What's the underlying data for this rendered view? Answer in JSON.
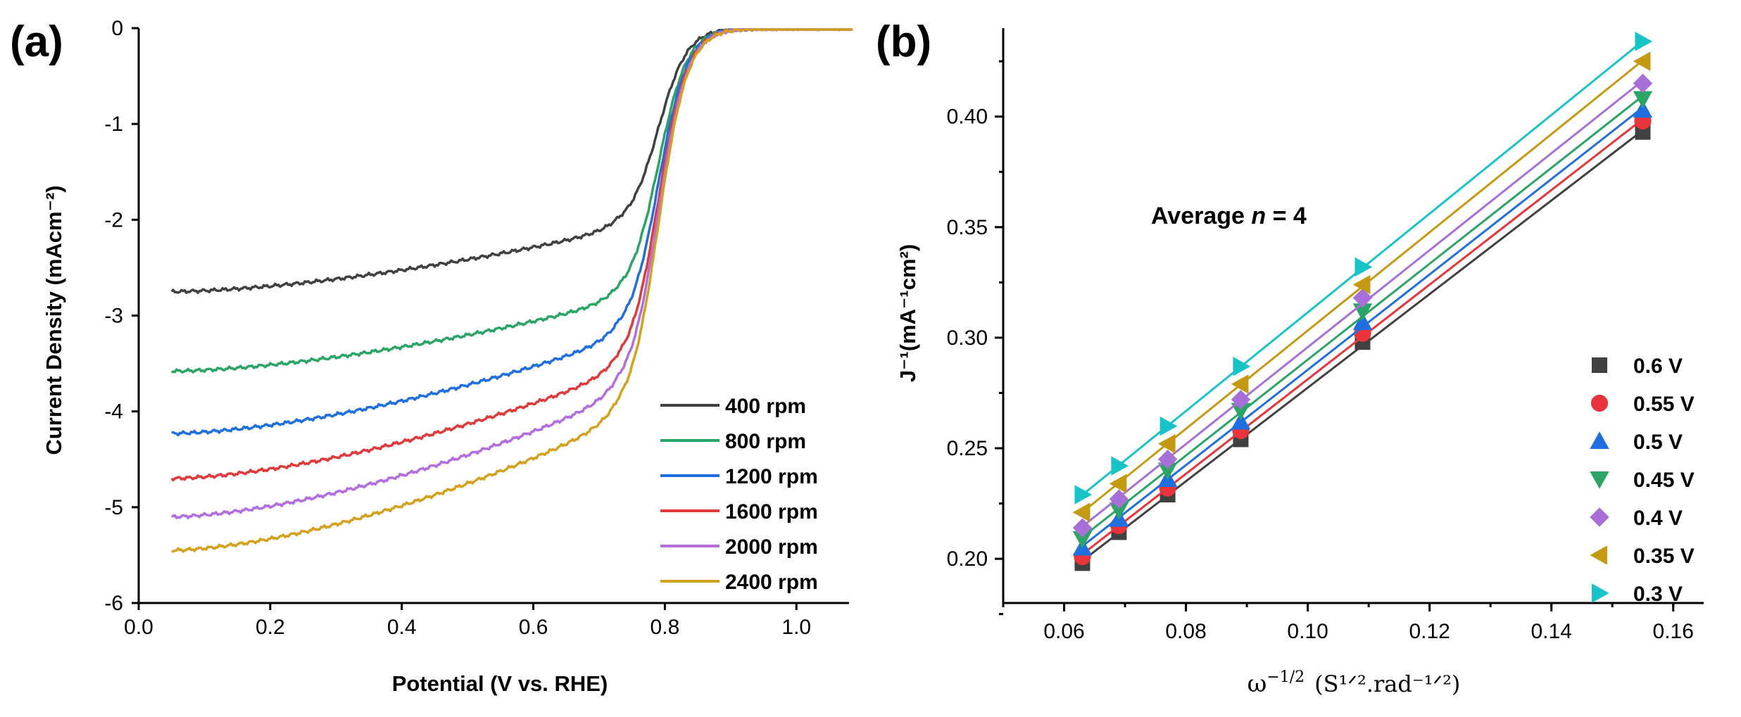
{
  "panel_labels": [
    "(a)",
    "(b)"
  ],
  "chart_data": [
    {
      "type": "line",
      "panel": "(a)",
      "xlabel": "Potential (V vs. RHE)",
      "ylabel": "Current Density (mAcm⁻²)",
      "xlim": [
        0.0,
        1.08
      ],
      "ylim": [
        -6,
        0
      ],
      "xticks": [
        "0.0",
        "0.2",
        "0.4",
        "0.6",
        "0.8",
        "1.0"
      ],
      "yticks": [
        "0",
        "-1",
        "-2",
        "-3",
        "-4",
        "-5",
        "-6"
      ],
      "legend_position": "bottom-right",
      "series": [
        {
          "name": "400 rpm",
          "color": "#404040",
          "limiting": -2.75,
          "plateau": -2.1
        },
        {
          "name": "800 rpm",
          "color": "#2aa566",
          "limiting": -3.58,
          "plateau": -2.85
        },
        {
          "name": "1200 rpm",
          "color": "#1f6fe0",
          "limiting": -4.23,
          "plateau": -3.25
        },
        {
          "name": "1600 rpm",
          "color": "#e0393a",
          "limiting": -4.7,
          "plateau": -3.6
        },
        {
          "name": "2000 rpm",
          "color": "#b26ee0",
          "limiting": -5.1,
          "plateau": -3.85
        },
        {
          "name": "2400 rpm",
          "color": "#d4a11c",
          "limiting": -5.45,
          "plateau": -4.1
        }
      ]
    },
    {
      "type": "scatter",
      "panel": "(b)",
      "xlabel_math": "ω",
      "xlabel_exp": "−1/2",
      "xlabel_units": "(S¹ᐟ².rad⁻¹ᐟ²)",
      "ylabel": "J⁻¹(mA⁻¹cm²)",
      "annotation_prefix": "Average ",
      "annotation_var": "n",
      "annotation_suffix": " = 4",
      "xlim": [
        0.05,
        0.165
      ],
      "ylim": [
        0.18,
        0.44
      ],
      "xticks": [
        "0.06",
        "0.08",
        "0.10",
        "0.12",
        "0.14",
        "0.16"
      ],
      "yticks": [
        "0.20",
        "0.25",
        "0.30",
        "0.35",
        "0.40"
      ],
      "x": [
        0.063,
        0.069,
        0.077,
        0.089,
        0.109,
        0.155
      ],
      "legend_position": "bottom-right",
      "series": [
        {
          "name": "0.6 V",
          "marker": "square",
          "color": "#404040",
          "values": [
            0.198,
            0.212,
            0.229,
            0.254,
            0.298,
            0.393
          ]
        },
        {
          "name": "0.55 V",
          "marker": "circle",
          "color": "#e8343a",
          "values": [
            0.201,
            0.215,
            0.232,
            0.258,
            0.302,
            0.398
          ]
        },
        {
          "name": "0.5 V",
          "marker": "triangle-up",
          "color": "#1f6fe0",
          "values": [
            0.205,
            0.218,
            0.236,
            0.262,
            0.307,
            0.403
          ]
        },
        {
          "name": "0.45 V",
          "marker": "triangle-down",
          "color": "#2aa566",
          "values": [
            0.209,
            0.222,
            0.24,
            0.267,
            0.312,
            0.408
          ]
        },
        {
          "name": "0.4 V",
          "marker": "diamond",
          "color": "#a86fd9",
          "values": [
            0.214,
            0.227,
            0.245,
            0.272,
            0.318,
            0.415
          ]
        },
        {
          "name": "0.35 V",
          "marker": "triangle-left",
          "color": "#c49a10",
          "values": [
            0.221,
            0.234,
            0.252,
            0.279,
            0.324,
            0.425
          ]
        },
        {
          "name": "0.3 V",
          "marker": "triangle-right",
          "color": "#17c4c8",
          "values": [
            0.229,
            0.242,
            0.26,
            0.287,
            0.332,
            0.434
          ]
        }
      ]
    }
  ]
}
